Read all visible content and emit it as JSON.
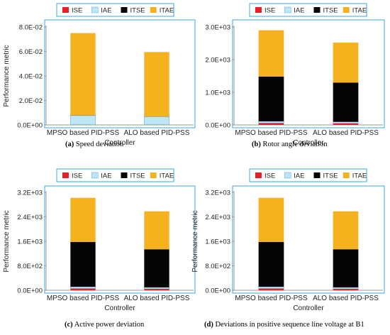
{
  "colors": {
    "ISE": "#ee1c25",
    "IAE": "#bfe6f7",
    "ITSE": "#050505",
    "ITAE": "#f5b21e",
    "frame": "#3fa4dc"
  },
  "chart_data": [
    {
      "type": "bar",
      "stacked": true,
      "caption_letter": "(a)",
      "caption_text": "Speed deviation",
      "categories": [
        "MPSO based PID-PSS",
        "ALO based PID-PSS"
      ],
      "xlabel": "Controller",
      "ylabel": "Performance metric",
      "ylim": [
        0,
        0.08
      ],
      "yticks": [
        0,
        0.02,
        0.04,
        0.06,
        0.08
      ],
      "ytick_labels": [
        "0.0E+00",
        "2.0E-02",
        "4.0E-02",
        "6.0E-02",
        "8.0E-02"
      ],
      "legend": [
        "ISE",
        "IAE",
        "ITSE",
        "ITAE"
      ],
      "series": [
        {
          "name": "ISE",
          "values": [
            0.0002,
            0.0002
          ]
        },
        {
          "name": "IAE",
          "values": [
            0.0075,
            0.0065
          ]
        },
        {
          "name": "ITSE",
          "values": [
            0.0001,
            0.0001
          ]
        },
        {
          "name": "ITAE",
          "values": [
            0.0672,
            0.0527
          ]
        }
      ]
    },
    {
      "type": "bar",
      "stacked": true,
      "caption_letter": "(b)",
      "caption_text": "Rotor angle deviation",
      "categories": [
        "MPSO based PID-PSS",
        "ALO based PID-PSS"
      ],
      "xlabel": "Controller",
      "ylabel": "",
      "ylim": [
        0,
        3000
      ],
      "yticks": [
        0,
        1000,
        2000,
        3000
      ],
      "ytick_labels": [
        "0.0E+00",
        "1.0E+03",
        "2.0E+03",
        "3.0E+03"
      ],
      "legend": [
        "ISE",
        "IAE",
        "ITSE",
        "ITAE"
      ],
      "series": [
        {
          "name": "ISE",
          "values": [
            60,
            50
          ]
        },
        {
          "name": "IAE",
          "values": [
            50,
            45
          ]
        },
        {
          "name": "ITSE",
          "values": [
            1370,
            1200
          ]
        },
        {
          "name": "ITAE",
          "values": [
            1420,
            1225
          ]
        }
      ]
    },
    {
      "type": "bar",
      "stacked": true,
      "caption_letter": "(c)",
      "caption_text": "Active power deviation",
      "categories": [
        "MPSO based PID-PSS",
        "ALO based PID-PSS"
      ],
      "xlabel": "Controller",
      "ylabel": "Performance metric",
      "ylim": [
        0,
        3200
      ],
      "yticks": [
        0,
        800,
        1600,
        2400,
        3200
      ],
      "ytick_labels": [
        "0.0E+00",
        "8.0E+02",
        "1.6E+03",
        "2.4E+03",
        "3.2E+03"
      ],
      "legend": [
        "ISE",
        "IAE",
        "ITSE",
        "ITAE"
      ],
      "series": [
        {
          "name": "ISE",
          "values": [
            60,
            50
          ]
        },
        {
          "name": "IAE",
          "values": [
            55,
            45
          ]
        },
        {
          "name": "ITSE",
          "values": [
            1465,
            1245
          ]
        },
        {
          "name": "ITAE",
          "values": [
            1440,
            1240
          ]
        }
      ]
    },
    {
      "type": "bar",
      "stacked": true,
      "caption_letter": "(d)",
      "caption_text": "Deviations in positive sequence line voltage at B1",
      "categories": [
        "MPSO based PID-PSS",
        "ALO based PID-PSS"
      ],
      "xlabel": "Controller",
      "ylabel": "Performance metric",
      "ylim": [
        0,
        3200
      ],
      "yticks": [
        0,
        800,
        1600,
        2400,
        3200
      ],
      "ytick_labels": [
        "0.0E+00",
        "8.0E+02",
        "1.6E+03",
        "2.4E+03",
        "3.2E+03"
      ],
      "legend": [
        "ISE",
        "IAE",
        "ITSE",
        "ITAE"
      ],
      "series": [
        {
          "name": "ISE",
          "values": [
            60,
            50
          ]
        },
        {
          "name": "IAE",
          "values": [
            55,
            45
          ]
        },
        {
          "name": "ITSE",
          "values": [
            1465,
            1245
          ]
        },
        {
          "name": "ITAE",
          "values": [
            1440,
            1240
          ]
        }
      ]
    }
  ]
}
